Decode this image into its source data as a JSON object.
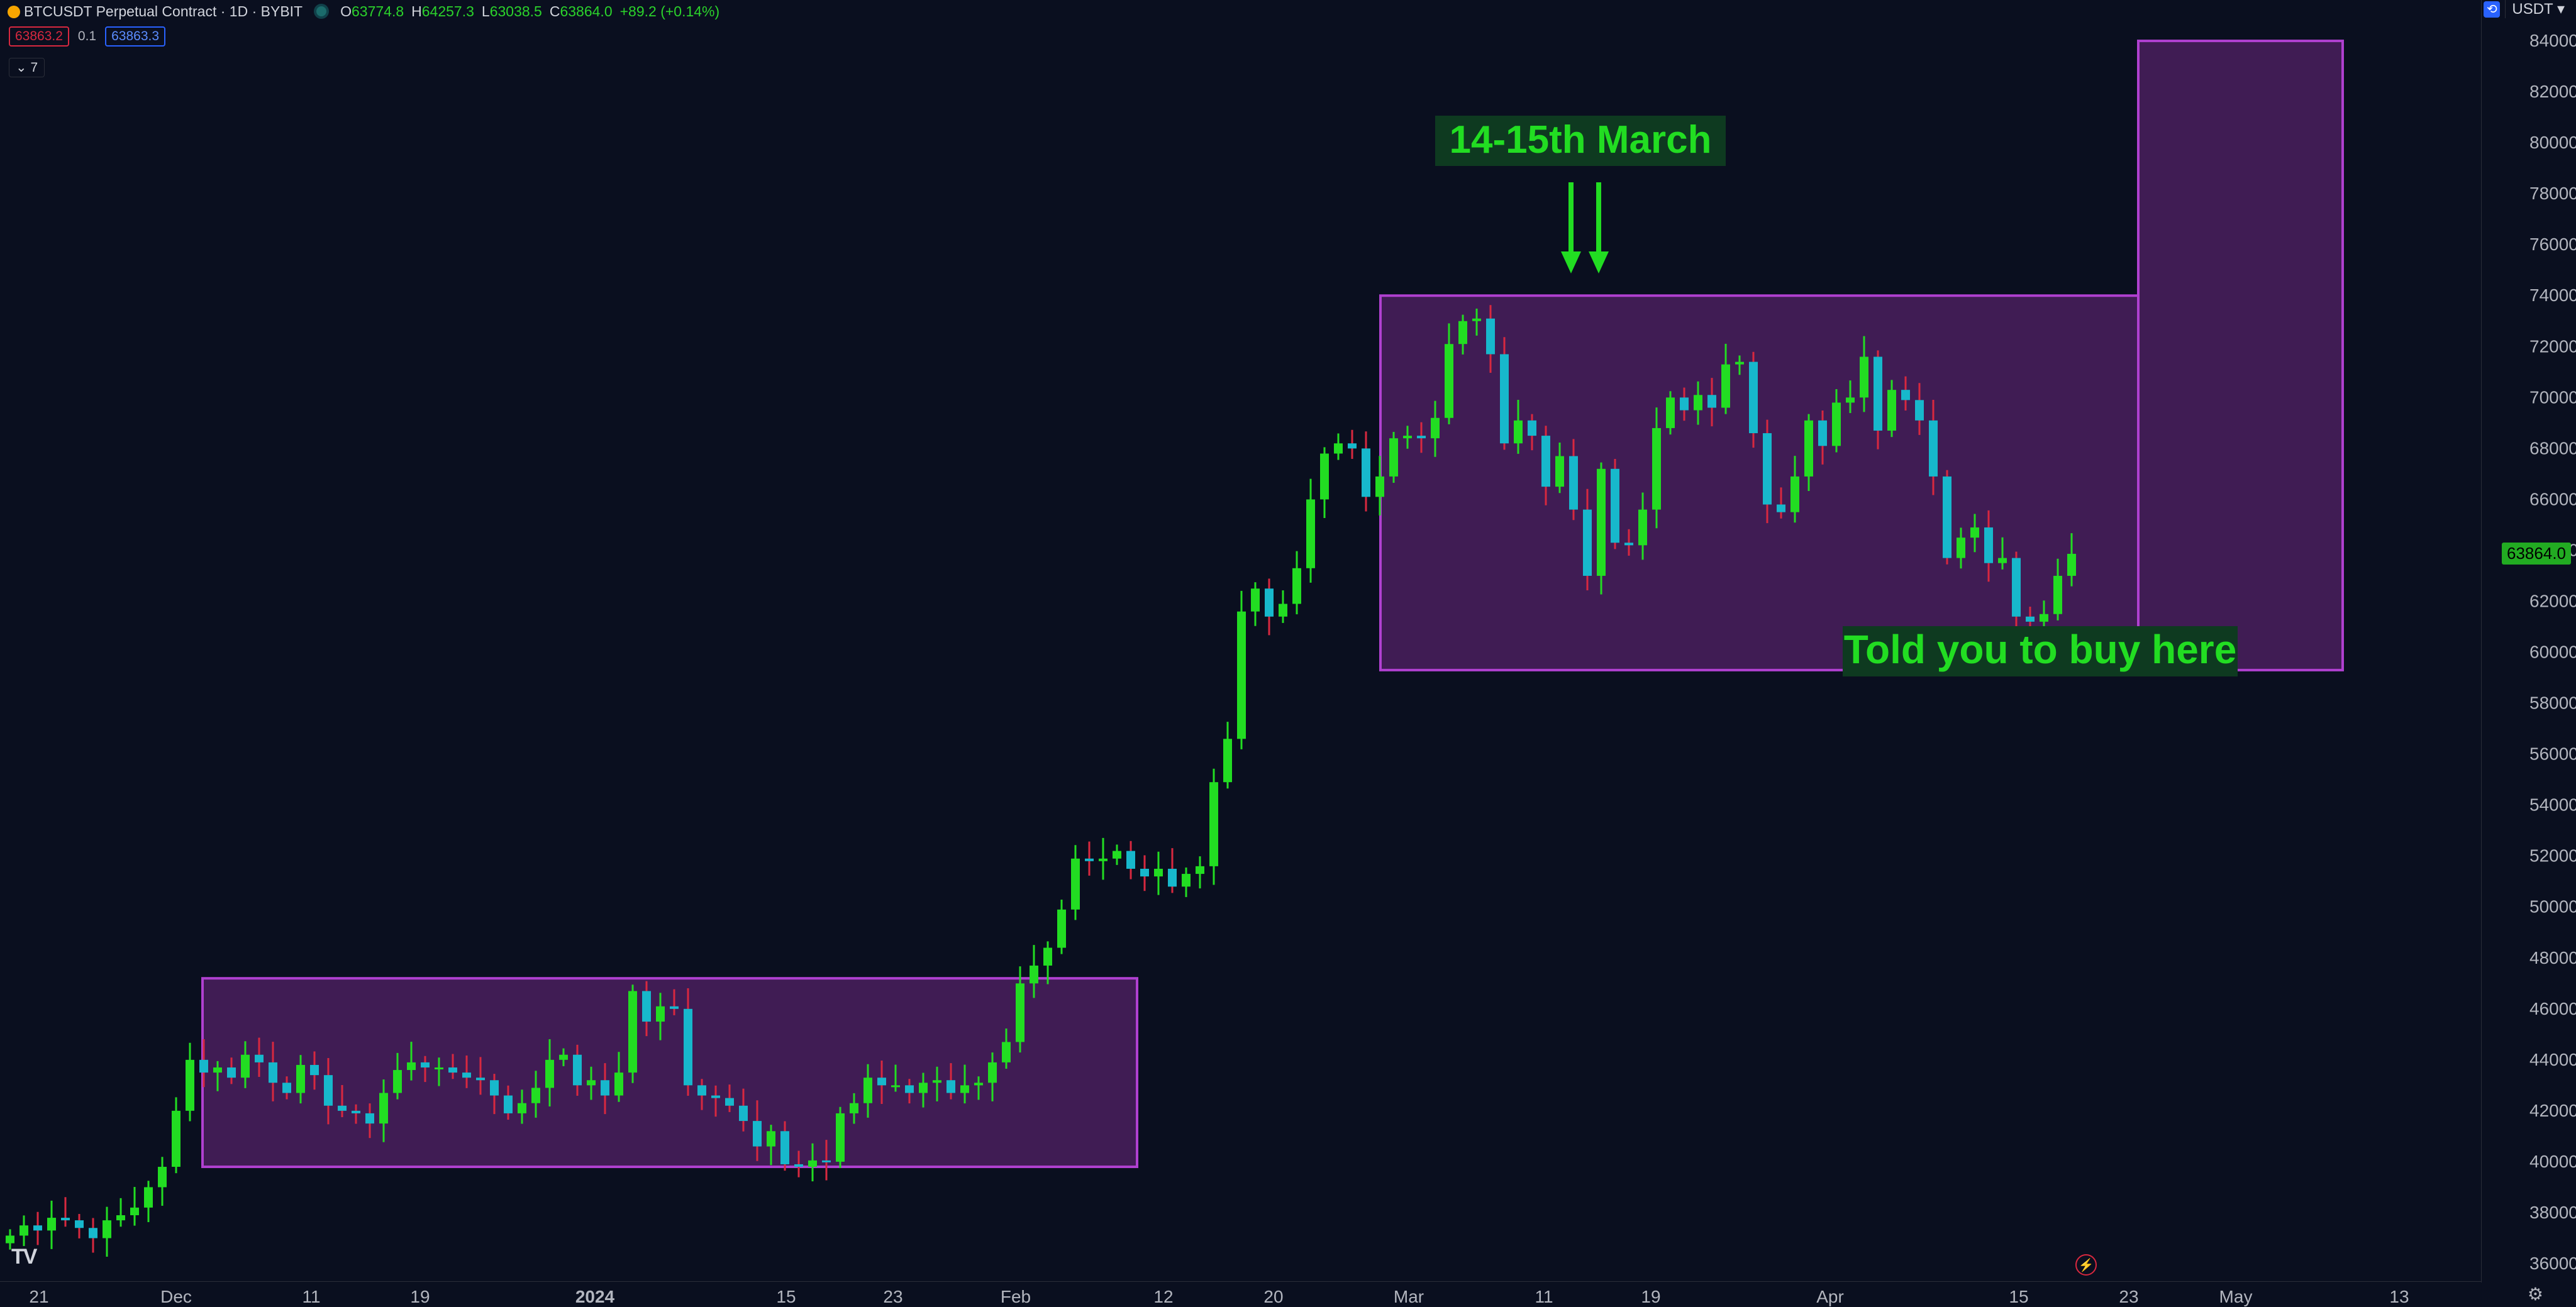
{
  "header": {
    "title": "BTCUSDT Perpetual Contract · 1D · BYBIT",
    "ohlc": [
      {
        "key": "O",
        "value": "63774.8"
      },
      {
        "key": "H",
        "value": "64257.3"
      },
      {
        "key": "L",
        "value": "63038.5"
      },
      {
        "key": "C",
        "value": "63864.0"
      }
    ],
    "change": "+89.2 (+0.14%)"
  },
  "quote": {
    "bid": "63863.2",
    "spread": "0.1",
    "ask": "63863.3"
  },
  "indicators_toggle": "7",
  "unit_selector": "USDT",
  "current_price": "63864.0",
  "annotations": {
    "top_label": "14-15th March",
    "bottom_label": "Told you to buy here"
  },
  "colors": {
    "background": "#0a0f1f",
    "up": "#22dd22",
    "down": "#17b8cc",
    "box_fill": "#4a1f5e",
    "box_stroke": "#b040d0",
    "label_text": "#22dd22",
    "label_bg": "#0e3a20",
    "wick_down": "#d8283f"
  },
  "chart_data": {
    "type": "candlestick",
    "title": "",
    "xlabel": "",
    "ylabel": "",
    "ylim": [
      35000,
      85000
    ],
    "y_ticks": [
      "36000.0",
      "38000.0",
      "40000.0",
      "42000.0",
      "44000.0",
      "46000.0",
      "48000.0",
      "50000.0",
      "52000.0",
      "54000.0",
      "56000.0",
      "58000.0",
      "60000.0",
      "62000.0",
      "64000.0",
      "66000.0",
      "68000.0",
      "70000.0",
      "72000.0",
      "74000.0",
      "76000.0",
      "78000.0",
      "80000.0",
      "82000.0",
      "84000.0"
    ],
    "x_ticks": [
      "21",
      "Dec",
      "11",
      "19",
      "2024",
      "15",
      "23",
      "Feb",
      "12",
      "20",
      "Mar",
      "11",
      "19",
      "Apr",
      "15",
      "23",
      "May",
      "13"
    ],
    "closes": [
      37100,
      37500,
      37300,
      37800,
      37700,
      37400,
      37000,
      37700,
      37900,
      38200,
      39000,
      39800,
      42000,
      44000,
      43500,
      43700,
      43300,
      44200,
      43900,
      43100,
      42700,
      43800,
      43400,
      42200,
      42000,
      41900,
      41500,
      42700,
      43600,
      43900,
      43700,
      43700,
      43500,
      43300,
      43200,
      42600,
      41900,
      42300,
      42900,
      44000,
      44200,
      43000,
      43200,
      42600,
      43500,
      46700,
      45500,
      46100,
      46000,
      43000,
      42600,
      42500,
      42200,
      41600,
      40600,
      41200,
      39900,
      39800,
      40050,
      40000,
      41900,
      42300,
      43300,
      43000,
      43000,
      42700,
      43100,
      43200,
      42700,
      43000,
      43100,
      43900,
      44700,
      47000,
      47700,
      48400,
      49900,
      51900,
      51800,
      51900,
      52200,
      51500,
      51200,
      51500,
      50800,
      51300,
      51600,
      54900,
      56600,
      61600,
      62500,
      61400,
      61900,
      63300,
      66000,
      67800,
      68200,
      68000,
      66100,
      66900,
      68400,
      68500,
      68400,
      69200,
      72100,
      73000,
      73100,
      71700,
      68200,
      69100,
      68500,
      66500,
      67700,
      65600,
      63000,
      67200,
      64300,
      64200,
      65600,
      68800,
      70000,
      69500,
      70100,
      69600,
      71300,
      71400,
      68600,
      65800,
      65500,
      66900,
      69100,
      68100,
      69800,
      70000,
      71600,
      68700,
      70300,
      69900,
      69100,
      66900,
      63700,
      64500,
      64900,
      63500,
      63700,
      61400,
      61200,
      61500,
      63000,
      63864
    ]
  }
}
